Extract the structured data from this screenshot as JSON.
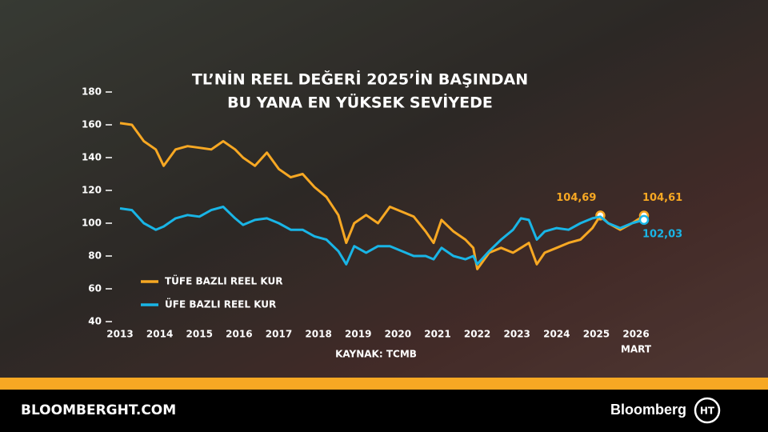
{
  "chart_data": {
    "type": "line",
    "title": [
      "TL’NİN REEL DEĞERİ 2025’İN BAŞINDAN",
      "BU YANA EN YÜKSEK SEVİYEDE"
    ],
    "source": "KAYNAK: TCMB",
    "x_note": "MART",
    "x": [
      2013.0,
      2013.3,
      2013.6,
      2013.9,
      2014.1,
      2014.4,
      2014.7,
      2015.0,
      2015.3,
      2015.6,
      2015.9,
      2016.1,
      2016.4,
      2016.7,
      2017.0,
      2017.3,
      2017.6,
      2017.9,
      2018.2,
      2018.5,
      2018.7,
      2018.9,
      2019.2,
      2019.5,
      2019.8,
      2020.1,
      2020.4,
      2020.7,
      2020.9,
      2021.1,
      2021.4,
      2021.7,
      2021.9,
      2022.0,
      2022.3,
      2022.6,
      2022.9,
      2023.1,
      2023.3,
      2023.5,
      2023.7,
      2024.0,
      2024.3,
      2024.6,
      2024.9,
      2025.1,
      2025.3,
      2025.6,
      2025.9,
      2026.2
    ],
    "series": [
      {
        "name": "TÜFE BAZLI REEL KUR",
        "color": "#f7a823",
        "values": [
          161,
          160,
          150,
          145,
          135,
          145,
          147,
          146,
          145,
          150,
          145,
          140,
          135,
          143,
          133,
          128,
          130,
          122,
          116,
          105,
          88,
          100,
          105,
          100,
          110,
          107,
          104,
          95,
          88,
          102,
          95,
          90,
          85,
          72,
          82,
          85,
          82,
          85,
          88,
          75,
          82,
          85,
          88,
          90,
          97,
          104.69,
          100,
          96,
          100,
          104.61
        ],
        "value_labels": [
          null,
          null,
          null,
          null,
          null,
          null,
          null,
          null,
          null,
          null,
          null,
          null,
          null,
          null,
          null,
          null,
          null,
          null,
          null,
          null,
          null,
          null,
          null,
          null,
          null,
          null,
          null,
          null,
          null,
          null,
          null,
          null,
          null,
          null,
          null,
          null,
          null,
          null,
          null,
          null,
          null,
          null,
          null,
          null,
          null,
          "104,69",
          null,
          null,
          null,
          "104,61"
        ]
      },
      {
        "name": "ÜFE BAZLI REEL KUR",
        "color": "#19b5e6",
        "values": [
          109,
          108,
          100,
          96,
          98,
          103,
          105,
          104,
          108,
          110,
          103,
          99,
          102,
          103,
          100,
          96,
          96,
          92,
          90,
          83,
          75,
          86,
          82,
          86,
          86,
          83,
          80,
          80,
          78,
          85,
          80,
          78,
          80,
          75,
          83,
          90,
          96,
          103,
          102,
          90,
          95,
          97,
          96,
          100,
          103,
          104,
          100,
          97,
          100,
          102.03
        ],
        "value_labels": [
          null,
          null,
          null,
          null,
          null,
          null,
          null,
          null,
          null,
          null,
          null,
          null,
          null,
          null,
          null,
          null,
          null,
          null,
          null,
          null,
          null,
          null,
          null,
          null,
          null,
          null,
          null,
          null,
          null,
          null,
          null,
          null,
          null,
          null,
          null,
          null,
          null,
          null,
          null,
          null,
          null,
          null,
          null,
          null,
          null,
          null,
          null,
          null,
          null,
          "102,03"
        ]
      }
    ],
    "xlim": [
      2013,
      2026.2
    ],
    "xticks": [
      2013,
      2014,
      2015,
      2016,
      2017,
      2018,
      2019,
      2020,
      2021,
      2022,
      2023,
      2024,
      2025,
      2026
    ],
    "ylim": [
      40,
      180
    ],
    "yticks": [
      40,
      60,
      80,
      100,
      120,
      140,
      160,
      180
    ]
  },
  "footer": {
    "site": "BLOOMBERGHT.COM",
    "brand": "Bloomberg",
    "logo": "HT"
  }
}
